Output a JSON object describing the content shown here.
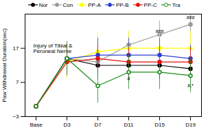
{
  "chart_data": {
    "type": "line",
    "y_label": "Paw Withdrawal Duration(sec)",
    "categories": [
      "Base",
      "D3",
      "D7",
      "D11",
      "D15",
      "D19"
    ],
    "ylim": [
      -3,
      27
    ],
    "yticks": [
      -3,
      7,
      17
    ],
    "series": [
      {
        "name": "Nor",
        "color": "#000000",
        "marker": "circle",
        "line_style": "solid",
        "values": [
          0,
          14,
          12,
          12,
          12,
          11
        ],
        "errors": [
          0,
          3,
          4,
          4,
          4,
          3
        ]
      },
      {
        "name": "Con",
        "color": "#999999",
        "marker": "circle",
        "line_style": "solid",
        "values": [
          0,
          14,
          13,
          18,
          21,
          24
        ],
        "errors": [
          0,
          4,
          5,
          4,
          4,
          5
        ]
      },
      {
        "name": "PP-A",
        "color": "#ffff00",
        "marker": "circle",
        "line_style": "solid",
        "values": [
          0,
          13,
          16,
          17,
          17,
          17
        ],
        "errors": [
          0,
          5,
          6,
          5,
          5,
          5
        ]
      },
      {
        "name": "PP-B",
        "color": "#2f3fd0",
        "marker": "circle",
        "line_style": "solid",
        "values": [
          0,
          14,
          15,
          15,
          15,
          14
        ],
        "errors": [
          0,
          4,
          5,
          5,
          5,
          4
        ]
      },
      {
        "name": "PP-C",
        "color": "#e01010",
        "marker": "circle",
        "line_style": "solid",
        "values": [
          0,
          13,
          14,
          13,
          13,
          13
        ],
        "errors": [
          0,
          4,
          4,
          4,
          4,
          4
        ]
      },
      {
        "name": "Tra",
        "color": "#1a8a1a",
        "marker": "circle-open",
        "line_style": "solid",
        "values": [
          0,
          14,
          6,
          10,
          10,
          9
        ],
        "errors": [
          0,
          5,
          5,
          5,
          5,
          5
        ]
      }
    ],
    "annotations": [
      {
        "text": "Injury of Tibial & Peroneal Nerve",
        "x": "Base",
        "y": 17
      },
      {
        "text": "###",
        "x": "D19",
        "y": 26
      },
      {
        "text": "###",
        "x": "D15",
        "y": 22
      },
      {
        "text": "#",
        "x": "D11",
        "y": 8
      },
      {
        "text": "#,*",
        "x": "D19",
        "y": 6
      }
    ]
  }
}
